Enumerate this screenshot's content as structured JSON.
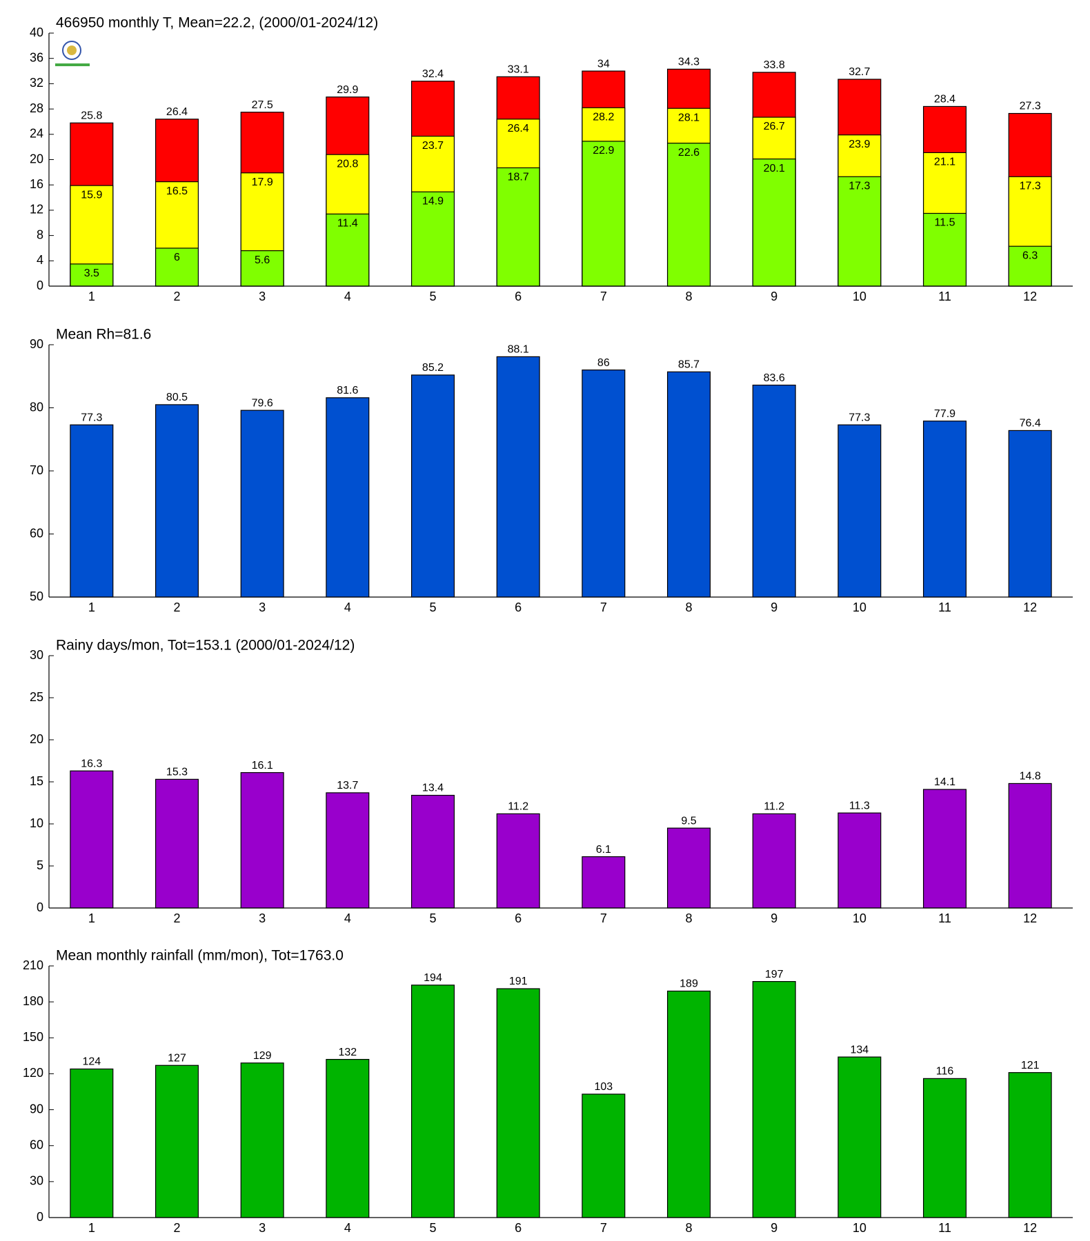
{
  "chart_data": [
    {
      "type": "bar",
      "title": "466950 monthly T, Mean=22.2, (2000/01-2024/12)",
      "categories": [
        "1",
        "2",
        "3",
        "4",
        "5",
        "6",
        "7",
        "8",
        "9",
        "10",
        "11",
        "12"
      ],
      "series": [
        {
          "color": "#ff0000",
          "values": [
            25.8,
            26.4,
            27.5,
            29.9,
            32.4,
            33.1,
            34,
            34.3,
            33.8,
            32.7,
            28.4,
            27.3
          ]
        },
        {
          "color": "#ffff00",
          "values": [
            15.9,
            16.5,
            17.9,
            20.8,
            23.7,
            26.4,
            28.2,
            28.1,
            26.7,
            23.9,
            21.1,
            17.3
          ]
        },
        {
          "color": "#80ff00",
          "values": [
            3.5,
            6,
            5.6,
            11.4,
            14.9,
            18.7,
            22.9,
            22.6,
            20.1,
            17.3,
            11.5,
            6.3
          ]
        }
      ],
      "ylim": [
        0,
        40
      ],
      "yticks": [
        0,
        4,
        8,
        12,
        16,
        20,
        24,
        28,
        32,
        36,
        40
      ]
    },
    {
      "type": "bar",
      "title": "Mean Rh=81.6",
      "categories": [
        "1",
        "2",
        "3",
        "4",
        "5",
        "6",
        "7",
        "8",
        "9",
        "10",
        "11",
        "12"
      ],
      "color": "#0050d0",
      "values": [
        77.3,
        80.5,
        79.6,
        81.6,
        85.2,
        88.1,
        86,
        85.7,
        83.6,
        77.3,
        77.9,
        76.4
      ],
      "ylim": [
        50,
        90
      ],
      "yticks": [
        50,
        60,
        70,
        80,
        90
      ]
    },
    {
      "type": "bar",
      "title": "Rainy days/mon, Tot=153.1 (2000/01-2024/12)",
      "categories": [
        "1",
        "2",
        "3",
        "4",
        "5",
        "6",
        "7",
        "8",
        "9",
        "10",
        "11",
        "12"
      ],
      "color": "#9900cc",
      "values": [
        16.3,
        15.3,
        16.1,
        13.7,
        13.4,
        11.2,
        6.1,
        9.5,
        11.2,
        11.3,
        14.1,
        14.8
      ],
      "ylim": [
        0,
        30
      ],
      "yticks": [
        0,
        5,
        10,
        15,
        20,
        25,
        30
      ]
    },
    {
      "type": "bar",
      "title": "Mean monthly rainfall (mm/mon), Tot=1763.0",
      "categories": [
        "1",
        "2",
        "3",
        "4",
        "5",
        "6",
        "7",
        "8",
        "9",
        "10",
        "11",
        "12"
      ],
      "color": "#00b400",
      "values": [
        124,
        127,
        129,
        132,
        194,
        191,
        103,
        189,
        197,
        134,
        116,
        121
      ],
      "ylim": [
        0,
        210
      ],
      "yticks": [
        0,
        30,
        60,
        90,
        120,
        150,
        180,
        210
      ]
    }
  ]
}
